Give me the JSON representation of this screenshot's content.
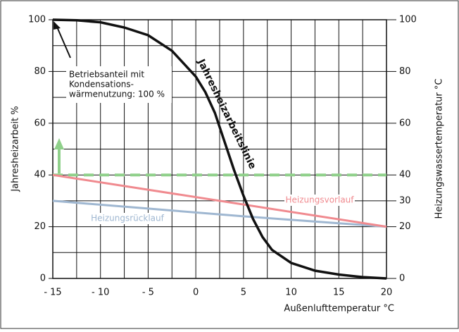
{
  "chart_data": {
    "type": "line",
    "y_label": "Jahresheizarbeit %",
    "y2_label": "Heizungswassertemperatur °C",
    "x_label": "Außenlufttemperatur °C",
    "xlim": [
      -15,
      20
    ],
    "xticks": [
      {
        "value": -15,
        "label": "- 15"
      },
      {
        "value": -10,
        "label": "- 10"
      },
      {
        "value": -5,
        "label": "- 5"
      },
      0,
      5,
      10,
      15,
      20
    ],
    "ylim": [
      0,
      100
    ],
    "yticks": [
      0,
      20,
      40,
      60,
      80,
      100
    ],
    "y2lim": [
      0,
      100
    ],
    "y2ticks": [
      0,
      20,
      30,
      40,
      60,
      80,
      100
    ],
    "grid": true,
    "series": [
      {
        "name": "Jahresheizarbeitslinie",
        "color": "#111111",
        "x": [
          -15,
          -12.5,
          -10,
          -7.5,
          -5,
          -2.5,
          0,
          1,
          2,
          3,
          4,
          5,
          6,
          7,
          8,
          10,
          12.5,
          15,
          17.5,
          20
        ],
        "values": [
          100,
          99.8,
          99,
          97,
          94,
          88,
          78,
          72,
          64,
          53,
          42,
          32,
          23,
          16,
          11,
          6,
          3,
          1.5,
          0.5,
          0
        ]
      },
      {
        "name": "Heizungsvorlauf",
        "color": "#f08a8f",
        "x": [
          -15,
          20
        ],
        "values": [
          40,
          20
        ]
      },
      {
        "name": "Heizungsrücklauf",
        "color": "#9fb7d1",
        "x": [
          -15,
          -5,
          5,
          20
        ],
        "values": [
          30,
          27,
          24,
          20
        ]
      },
      {
        "color": "#8fd08a",
        "dashed": true,
        "x": [
          -15,
          20
        ],
        "values": [
          40,
          40
        ]
      }
    ],
    "annotation": [
      "Betriebsanteil mit",
      "Kondensations-",
      "wärmenutzung: 100 %"
    ]
  }
}
